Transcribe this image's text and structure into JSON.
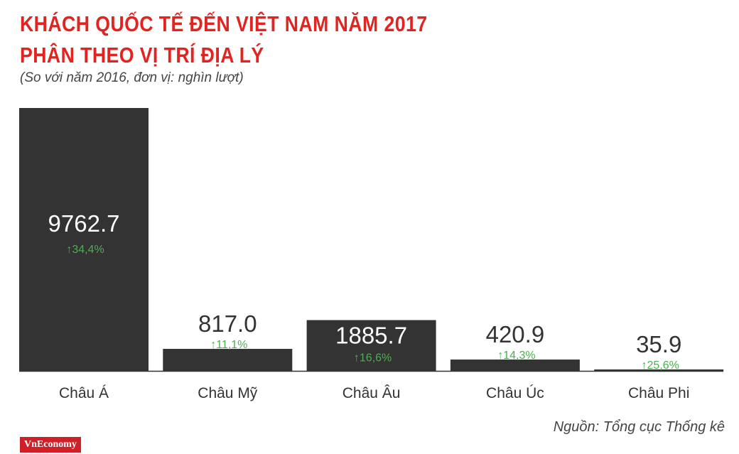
{
  "header": {
    "title_line1": "KHÁCH QUỐC TẾ ĐẾN VIỆT NAM NĂM 2017",
    "title_line2": "PHÂN THEO VỊ TRÍ ĐỊA LÝ",
    "subtitle": "(So với năm 2016, đơn vị: nghìn lượt)"
  },
  "footer": {
    "source": "Nguồn: Tổng cục Thống kê",
    "logo": "VnEconomy"
  },
  "colors": {
    "bar": "#333333",
    "title": "#e3231f",
    "growth": "#4caf50",
    "value_dark": "#333333",
    "value_light": "#ffffff"
  },
  "chart_data": {
    "type": "bar",
    "title": "KHÁCH QUỐC TẾ ĐẾN VIỆT NAM NĂM 2017 PHÂN THEO VỊ TRÍ ĐỊA LÝ",
    "subtitle": "(So với năm 2016, đơn vị: nghìn lượt)",
    "categories": [
      "Châu Á",
      "Châu Mỹ",
      "Châu Âu",
      "Châu Úc",
      "Châu Phi"
    ],
    "values": [
      9762.7,
      817.0,
      1885.7,
      420.9,
      35.9
    ],
    "value_labels": [
      "9762.7",
      "817.0",
      "1885.7",
      "420.9",
      "35.9"
    ],
    "growth_labels": [
      "34,4%",
      "11,1%",
      "16,6%",
      "14,3%",
      "25,6%"
    ],
    "growth_symbol": "↑",
    "xlabel": "",
    "ylabel": "",
    "ylim": [
      0,
      9762.7
    ],
    "grid": false
  }
}
